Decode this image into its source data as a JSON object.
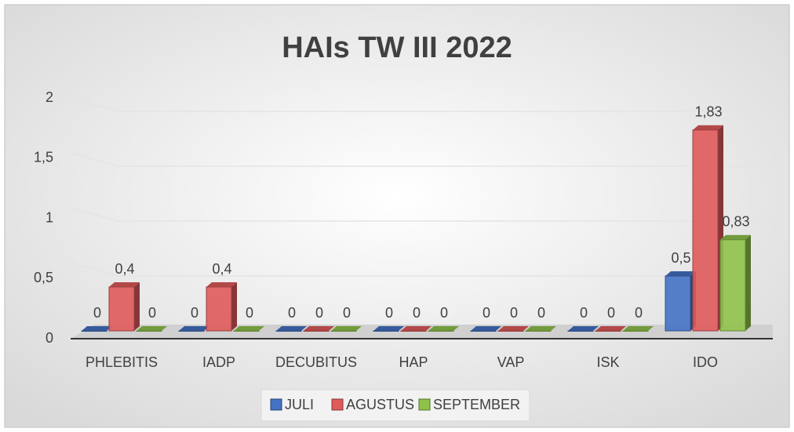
{
  "chart_data": {
    "type": "bar3d",
    "title": "HAIs TW III 2022",
    "categories": [
      "PHLEBITIS",
      "IADP",
      "DECUBITUS",
      "HAP",
      "VAP",
      "ISK",
      "IDO"
    ],
    "series": [
      {
        "name": "JULI",
        "color": "#4472c4",
        "values": [
          0,
          0,
          0,
          0,
          0,
          0,
          0.5
        ],
        "value_labels": [
          "0",
          "0",
          "0",
          "0",
          "0",
          "0",
          "0,5"
        ]
      },
      {
        "name": "AGUSTUS",
        "color": "#e05a5a",
        "values": [
          0.4,
          0.4,
          0,
          0,
          0,
          0,
          1.83
        ],
        "value_labels": [
          "0,4",
          "0,4",
          "0",
          "0",
          "0",
          "0",
          "1,83"
        ]
      },
      {
        "name": "SEPTEMBER",
        "color": "#8fc24a",
        "values": [
          0,
          0,
          0,
          0,
          0,
          0,
          0.83
        ],
        "value_labels": [
          "0",
          "0",
          "0",
          "0",
          "0",
          "0",
          "0,83"
        ]
      }
    ],
    "ylim": [
      0,
      2
    ],
    "yticks": [
      0,
      {
        "value": 0.5,
        "label": "0,5"
      },
      1,
      {
        "value": 1.5,
        "label": "1,5"
      },
      2
    ],
    "grid": true,
    "legend": "bottom"
  }
}
